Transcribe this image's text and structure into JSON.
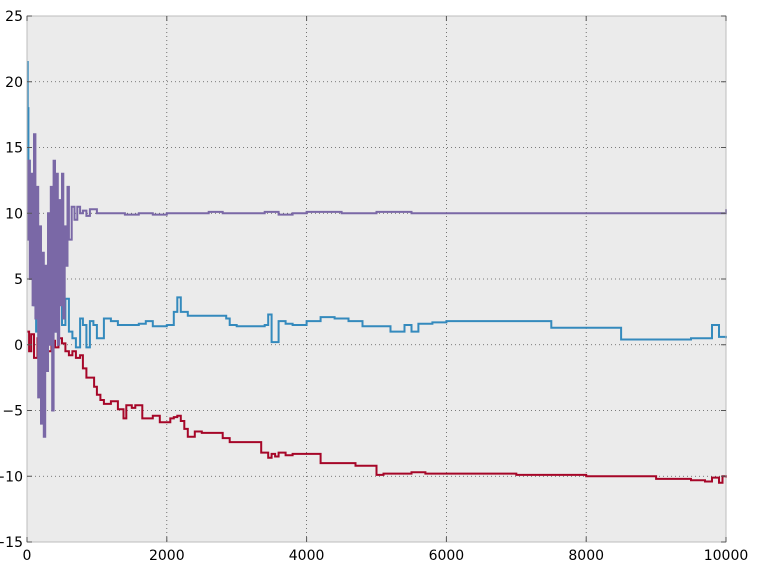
{
  "chart_data": {
    "type": "line",
    "title": "",
    "xlabel": "",
    "ylabel": "",
    "xlim": [
      0,
      10000
    ],
    "ylim": [
      -15,
      25
    ],
    "xticks": [
      0,
      2000,
      4000,
      6000,
      8000,
      10000
    ],
    "xtick_labels": [
      "0",
      "2000",
      "4000",
      "6000",
      "8000",
      "10000"
    ],
    "yticks": [
      -15,
      -10,
      -5,
      0,
      5,
      10,
      15,
      20,
      25
    ],
    "ytick_labels": [
      "−15",
      "−10",
      "−5",
      "0",
      "5",
      "10",
      "15",
      "20",
      "25"
    ],
    "grid": true,
    "background": "#ebebeb",
    "series": [
      {
        "color": "#a60628",
        "x": [
          0,
          30,
          60,
          100,
          150,
          200,
          250,
          300,
          350,
          400,
          450,
          500,
          550,
          600,
          650,
          700,
          760,
          800,
          850,
          900,
          960,
          1000,
          1050,
          1100,
          1200,
          1300,
          1380,
          1420,
          1500,
          1550,
          1650,
          1700,
          1800,
          1900,
          2050,
          2100,
          2150,
          2200,
          2250,
          2300,
          2400,
          2500,
          2650,
          2800,
          2900,
          3000,
          3200,
          3350,
          3450,
          3500,
          3550,
          3600,
          3700,
          3800,
          4000,
          4200,
          4300,
          4400,
          4700,
          4900,
          5000,
          5100,
          5400,
          5500,
          5700,
          6000,
          7000,
          7500,
          8000,
          8500,
          9000,
          9500,
          9700,
          9800,
          9900,
          9950,
          10000
        ],
        "y": [
          1,
          -0.5,
          0.8,
          -1,
          0.5,
          -1.5,
          0.2,
          -0.5,
          0.3,
          -0.2,
          0.5,
          0.1,
          -0.5,
          -0.8,
          -0.5,
          -1,
          -0.8,
          -1.8,
          -2.5,
          -2.5,
          -3.2,
          -3.8,
          -4.2,
          -4.5,
          -4.3,
          -4.9,
          -5.6,
          -4.6,
          -4.8,
          -4.6,
          -5.6,
          -5.6,
          -5.4,
          -5.9,
          -5.6,
          -5.5,
          -5.4,
          -5.8,
          -6.4,
          -7,
          -6.6,
          -6.7,
          -6.7,
          -7.1,
          -7.4,
          -7.4,
          -7.4,
          -8.2,
          -8.6,
          -8.3,
          -8.5,
          -8.2,
          -8.4,
          -8.3,
          -8.3,
          -9,
          -9,
          -9,
          -9.2,
          -9.2,
          -9.9,
          -9.8,
          -9.8,
          -9.7,
          -9.8,
          -9.8,
          -9.9,
          -9.9,
          -10,
          -10,
          -10.2,
          -10.3,
          -10.4,
          -10.1,
          -10.5,
          -10,
          -10.1
        ]
      },
      {
        "color": "#348abd",
        "x": [
          0,
          10,
          20,
          40,
          60,
          80,
          100,
          130,
          160,
          200,
          240,
          280,
          320,
          360,
          400,
          450,
          500,
          550,
          600,
          650,
          700,
          760,
          800,
          850,
          900,
          950,
          1000,
          1100,
          1200,
          1300,
          1400,
          1500,
          1600,
          1700,
          1800,
          2000,
          2100,
          2150,
          2200,
          2300,
          2500,
          2700,
          2850,
          2900,
          3000,
          3200,
          3300,
          3400,
          3450,
          3500,
          3600,
          3700,
          3800,
          4000,
          4200,
          4400,
          4600,
          4800,
          5000,
          5200,
          5400,
          5500,
          5600,
          5800,
          6000,
          6500,
          7000,
          7500,
          8000,
          8500,
          8600,
          9000,
          9500,
          9800,
          9900,
          10000
        ],
        "y": [
          21.5,
          18,
          14,
          10,
          6,
          8,
          3,
          1,
          4,
          -0.5,
          1.5,
          2.5,
          0.5,
          3,
          1,
          4.5,
          1.5,
          3.5,
          1,
          0.5,
          -0.2,
          2,
          1.5,
          -0.2,
          1.8,
          1.5,
          0.5,
          2,
          1.8,
          1.5,
          1.5,
          1.5,
          1.6,
          1.8,
          1.4,
          1.5,
          2.5,
          3.6,
          2.5,
          2.2,
          2.2,
          2.2,
          2,
          1.5,
          1.4,
          1.4,
          1.4,
          1.5,
          2.3,
          0.2,
          1.8,
          1.6,
          1.5,
          1.8,
          2.1,
          2,
          1.8,
          1.4,
          1.4,
          1,
          1.5,
          1,
          1.6,
          1.7,
          1.8,
          1.8,
          1.8,
          1.3,
          1.3,
          0.4,
          0.4,
          0.4,
          0.5,
          1.5,
          0.6,
          0.5
        ]
      },
      {
        "color": "#7a68a6",
        "x": [
          0,
          20,
          40,
          60,
          80,
          100,
          120,
          140,
          160,
          180,
          200,
          220,
          240,
          260,
          280,
          300,
          320,
          340,
          360,
          380,
          400,
          420,
          440,
          460,
          480,
          500,
          520,
          540,
          560,
          580,
          600,
          640,
          680,
          720,
          760,
          800,
          850,
          900,
          1000,
          1200,
          1400,
          1600,
          1800,
          2000,
          2200,
          2400,
          2600,
          2800,
          3000,
          3200,
          3400,
          3600,
          3800,
          4000,
          4500,
          5000,
          5500,
          6000,
          7000,
          8000,
          9000,
          9500,
          9800,
          10000
        ],
        "y": [
          8,
          14,
          5,
          13,
          3,
          16,
          2,
          12,
          -4,
          9,
          -6,
          7,
          -7,
          6,
          -2,
          10,
          0,
          12,
          -5,
          14,
          1,
          13,
          0,
          11,
          3,
          13,
          2,
          9,
          6,
          12,
          8,
          10.5,
          9.5,
          10.5,
          10,
          10.2,
          9.8,
          10.3,
          10,
          10,
          9.9,
          10,
          9.9,
          10,
          10,
          10,
          10.1,
          10,
          10,
          10,
          10.1,
          9.9,
          10,
          10.1,
          10,
          10.1,
          10,
          10,
          10,
          10,
          10,
          10,
          10,
          10.3
        ]
      }
    ]
  }
}
